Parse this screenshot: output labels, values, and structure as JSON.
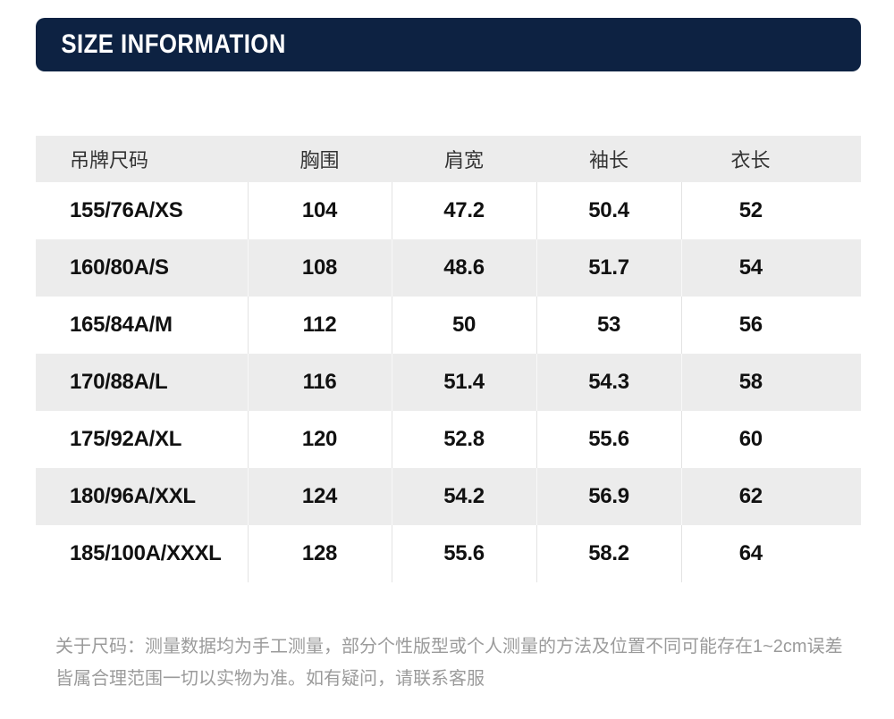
{
  "header": {
    "title": "SIZE INFORMATION"
  },
  "table": {
    "columns": [
      "吊牌尺码",
      "胸围",
      "肩宽",
      "袖长",
      "衣长"
    ],
    "rows": [
      [
        "155/76A/XS",
        "104",
        "47.2",
        "50.4",
        "52"
      ],
      [
        "160/80A/S",
        "108",
        "48.6",
        "51.7",
        "54"
      ],
      [
        "165/84A/M",
        "112",
        "50",
        "53",
        "56"
      ],
      [
        "170/88A/L",
        "116",
        "51.4",
        "54.3",
        "58"
      ],
      [
        "175/92A/XL",
        "120",
        "52.8",
        "55.6",
        "60"
      ],
      [
        "180/96A/XXL",
        "124",
        "54.2",
        "56.9",
        "62"
      ],
      [
        "185/100A/XXXL",
        "128",
        "55.6",
        "58.2",
        "64"
      ]
    ]
  },
  "footer": {
    "lines": [
      "关于尺码：测量数据均为手工测量，部分个性版型或个人测量的方法及位置不同可能存在1~2cm误差",
      "皆属合理范围一切以实物为准。如有疑问，请联系客服"
    ]
  },
  "colors": {
    "banner_navy": "#0d2242",
    "banner_text": "#ffffff",
    "header_row_bg": "#ececec",
    "alt_row_bg": "#ececec",
    "cell_divider": "#e3e3e3",
    "cell_text": "#111111",
    "header_text": "#333333",
    "note_text": "#9b9b9b"
  }
}
